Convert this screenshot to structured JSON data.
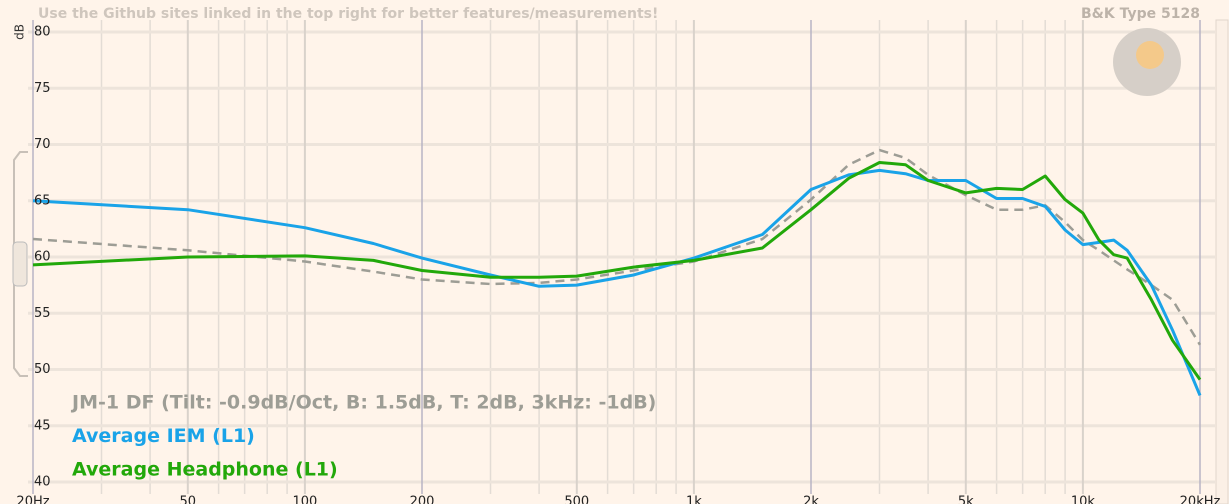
{
  "chart_data": {
    "type": "line",
    "notice": "Use the Github sites linked in the top right for better features/measurements!",
    "rig": "B&K Type 5128",
    "ylabel": "dB",
    "xscale": "log",
    "xlim": [
      20,
      20000
    ],
    "ylim": [
      40,
      80
    ],
    "xticks": [
      {
        "value": 20,
        "label": "20Hz"
      },
      50,
      100,
      200,
      500,
      {
        "value": 1000,
        "label": "1k"
      },
      {
        "value": 2000,
        "label": "2k"
      },
      {
        "value": 5000,
        "label": "5k"
      },
      {
        "value": 10000,
        "label": "10k"
      },
      {
        "value": 20000,
        "label": "20kHz"
      }
    ],
    "xminor": [
      30,
      40,
      60,
      70,
      80,
      90,
      300,
      400,
      600,
      700,
      800,
      900,
      3000,
      4000,
      6000,
      7000,
      8000,
      9000
    ],
    "yticks": [
      40,
      45,
      50,
      55,
      60,
      65,
      70,
      75,
      80
    ],
    "grid": true,
    "x": [
      20,
      50,
      100,
      150,
      200,
      300,
      400,
      500,
      700,
      1000,
      1500,
      2000,
      2500,
      3000,
      3500,
      4000,
      5000,
      6000,
      7000,
      8000,
      9000,
      10000,
      11000,
      12000,
      13000,
      15000,
      17000,
      20000
    ],
    "series": [
      {
        "name": "JM-1 DF (Tilt: -0.9dB/Oct, B: 1.5dB, T: 2dB, 3kHz: -1dB)",
        "color": "#9d9d95",
        "dashed": true,
        "values": [
          61.6,
          60.6,
          59.6,
          58.7,
          58.0,
          57.6,
          57.7,
          58.0,
          58.8,
          59.6,
          61.6,
          65.1,
          68.2,
          69.5,
          68.8,
          67.3,
          65.5,
          64.2,
          64.2,
          64.6,
          63.1,
          61.5,
          60.6,
          59.7,
          58.9,
          57.5,
          56.2,
          52.2
        ]
      },
      {
        "name": "Average IEM (L1)",
        "color": "#1aa3e8",
        "dashed": false,
        "values": [
          65.0,
          64.2,
          62.6,
          61.2,
          59.9,
          58.4,
          57.4,
          57.5,
          58.4,
          59.9,
          62.0,
          66.0,
          67.3,
          67.7,
          67.4,
          66.8,
          66.8,
          65.2,
          65.2,
          64.5,
          62.4,
          61.1,
          61.3,
          61.5,
          60.6,
          57.5,
          53.5,
          47.7
        ]
      },
      {
        "name": "Average Headphone (L1)",
        "color": "#22a80a",
        "dashed": false,
        "values": [
          59.3,
          60.0,
          60.1,
          59.7,
          58.8,
          58.2,
          58.2,
          58.3,
          59.1,
          59.7,
          60.8,
          64.2,
          67.0,
          68.4,
          68.2,
          66.8,
          65.7,
          66.1,
          66.0,
          67.2,
          65.1,
          63.9,
          61.5,
          60.2,
          59.9,
          56.2,
          52.6,
          49.1
        ]
      }
    ]
  }
}
